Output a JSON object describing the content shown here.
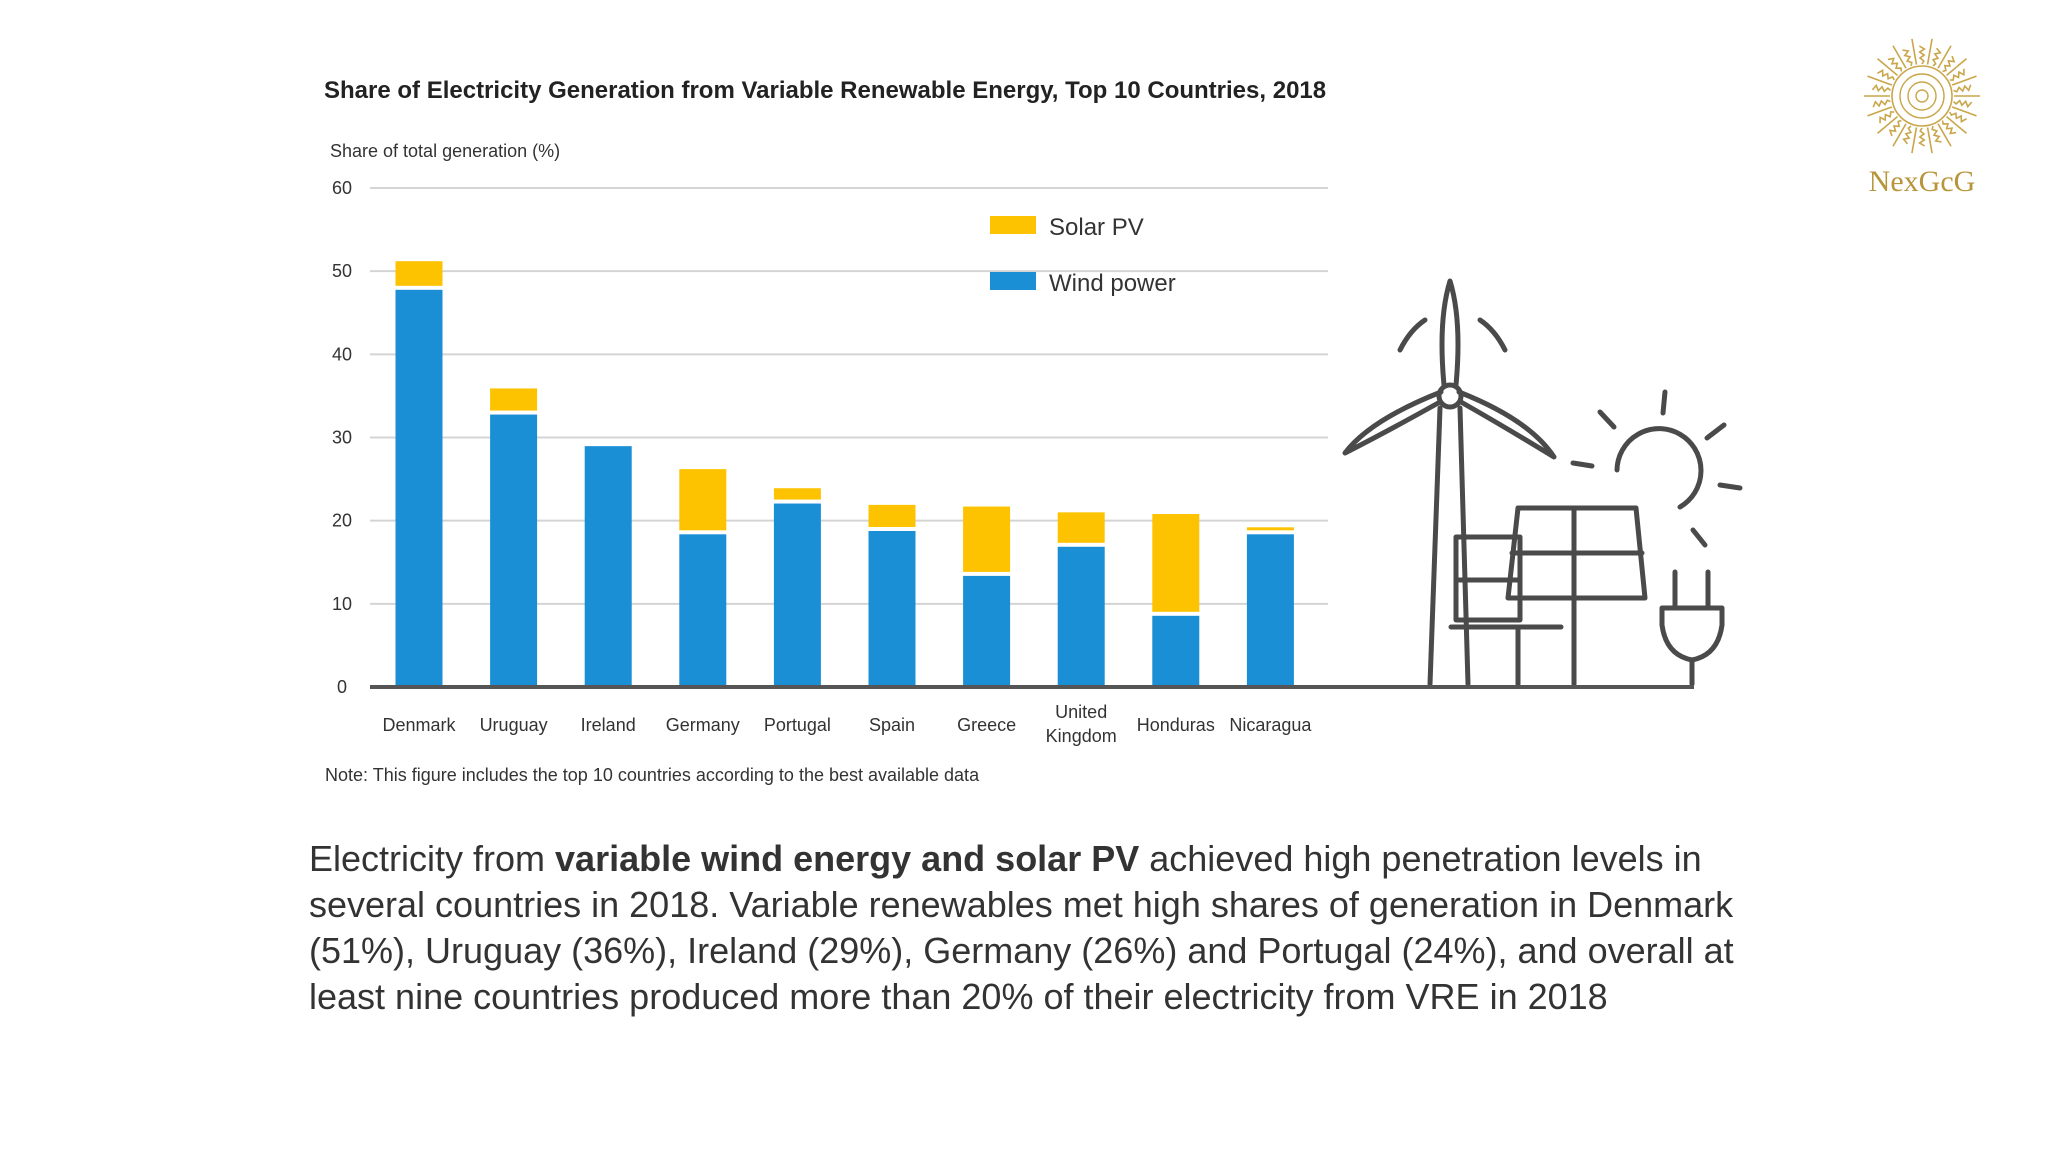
{
  "chart_data": {
    "type": "bar",
    "stacked": true,
    "title": "Share of Electricity Generation from Variable Renewable Energy, Top 10 Countries, 2018",
    "ylabel": "Share of total generation (%)",
    "xlabel": "",
    "ylim": [
      0,
      60
    ],
    "yticks": [
      0,
      10,
      20,
      30,
      40,
      50,
      60
    ],
    "grid": true,
    "legend_position": "top-right",
    "categories": [
      "Denmark",
      "Uruguay",
      "Ireland",
      "Germany",
      "Portugal",
      "Spain",
      "Greece",
      "United Kingdom",
      "Honduras",
      "Nicaragua"
    ],
    "series": [
      {
        "name": "Wind power",
        "color": "#1a8fd6",
        "values": [
          48.0,
          33.0,
          29.2,
          18.6,
          22.3,
          19.0,
          13.6,
          17.1,
          8.8,
          18.6
        ]
      },
      {
        "name": "Solar PV",
        "color": "#fdc300",
        "values": [
          3.2,
          2.9,
          0,
          7.6,
          1.6,
          2.9,
          8.1,
          3.9,
          12.0,
          0.6
        ]
      }
    ],
    "legend_order": [
      "Solar PV",
      "Wind power"
    ],
    "note": "Note: This figure includes the top 10 countries according to the best available data"
  },
  "paragraph": {
    "pre": "Electricity from ",
    "bold": "variable wind energy and solar PV",
    "post": " achieved high penetration levels in several countries in 2018. Variable renewables met high shares of generation in Denmark (51%), Uruguay (36%), Ireland (29%), Germany (26%) and Portugal (24%), and overall at least nine countries produced more than 20% of their electricity from VRE in 2018"
  },
  "logo": {
    "text": "NexGcG",
    "icon": "sun-logo-icon",
    "color": "#b8953a"
  },
  "illustration": {
    "icons": [
      "wind-turbine-icon",
      "solar-panel-icon",
      "sun-icon",
      "plug-icon"
    ],
    "stroke": "#4a4a4a"
  }
}
